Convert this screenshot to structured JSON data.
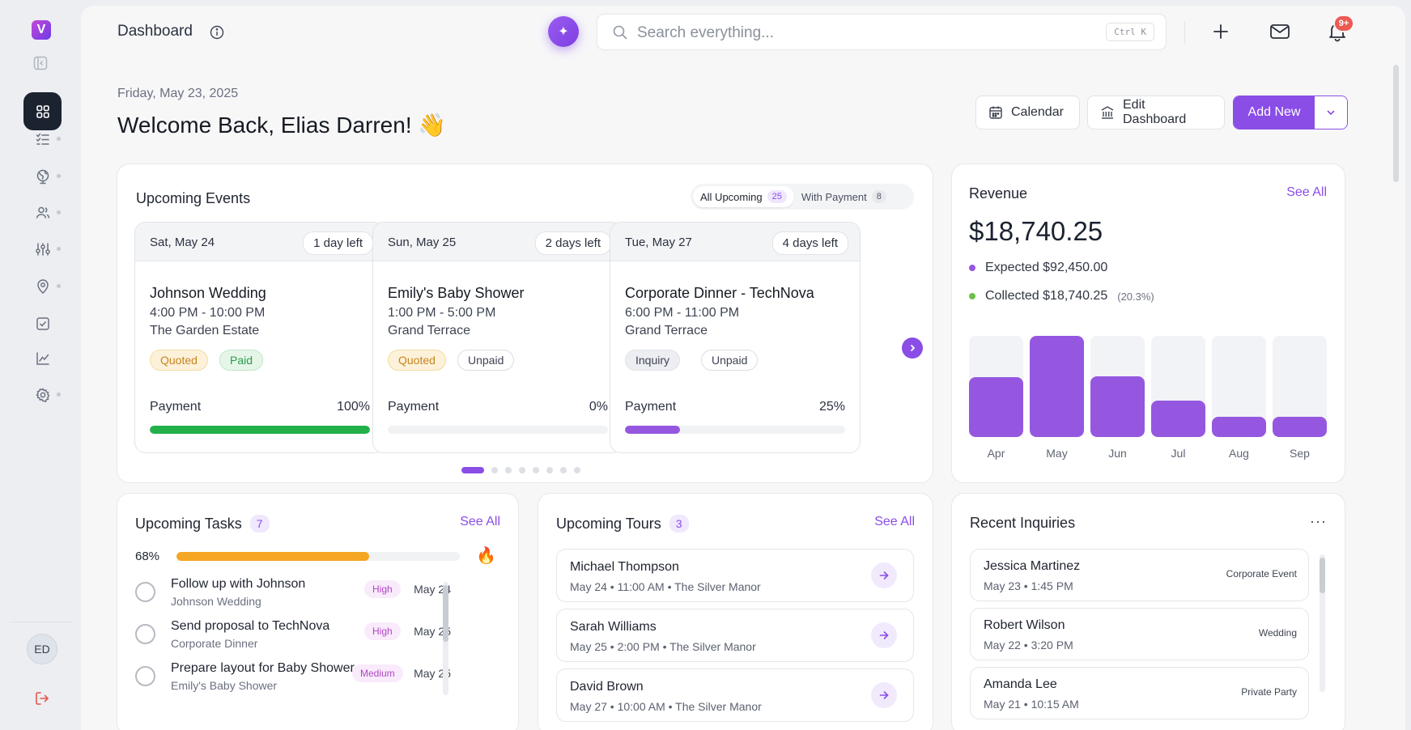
{
  "app": {
    "logo_letter": "V",
    "page_title": "Dashboard",
    "user_initials": "ED"
  },
  "search": {
    "placeholder": "Search everything...",
    "shortcut": "Ctrl K"
  },
  "notifications": {
    "badge": "9+"
  },
  "header": {
    "date": "Friday, May 23, 2025",
    "welcome": "Welcome Back, Elias Darren! 👋",
    "calendar_label": "Calendar",
    "edit_label": "Edit Dashboard",
    "add_label": "Add New"
  },
  "sidebar": {
    "items": [
      {
        "icon": "dashboard-grid-icon",
        "active": true,
        "dot": false
      },
      {
        "icon": "task-list-icon",
        "dot": true
      },
      {
        "icon": "globe-icon",
        "dot": true
      },
      {
        "icon": "users-icon",
        "dot": true
      },
      {
        "icon": "sliders-icon",
        "dot": true
      },
      {
        "icon": "location-pin-icon",
        "dot": true
      },
      {
        "icon": "checkbox-icon",
        "dot": false
      },
      {
        "icon": "analytics-chart-icon",
        "dot": false
      },
      {
        "icon": "settings-gear-icon",
        "dot": true
      }
    ]
  },
  "events": {
    "title": "Upcoming Events",
    "tabs": [
      {
        "label": "All Upcoming",
        "count": "25"
      },
      {
        "label": "With Payment",
        "count": "8"
      }
    ],
    "items": [
      {
        "date": "Sat, May 24",
        "left": "1 day left",
        "name": "Johnson Wedding",
        "time": "4:00 PM - 10:00 PM",
        "venue": "The Garden Estate",
        "tags": [
          "Quoted",
          "Paid"
        ],
        "payment_label": "Payment",
        "payment": "100%",
        "progress": 100,
        "color": "#22b04b"
      },
      {
        "date": "Sun, May 25",
        "left": "2 days left",
        "name": "Emily's Baby Shower",
        "time": "1:00 PM - 5:00 PM",
        "venue": "Grand Terrace",
        "tags": [
          "Quoted",
          "Unpaid"
        ],
        "payment_label": "Payment",
        "payment": "0%",
        "progress": 0,
        "color": "#9557e0"
      },
      {
        "date": "Tue, May 27",
        "left": "4 days left",
        "name": "Corporate Dinner - TechNova",
        "time": "6:00 PM - 11:00 PM",
        "venue": "Grand Terrace",
        "tags": [
          "Inquiry",
          "Unpaid"
        ],
        "payment_label": "Payment",
        "payment": "25%",
        "progress": 25,
        "color": "#9557e0"
      }
    ],
    "pages": 8,
    "active_page": 0
  },
  "revenue": {
    "title": "Revenue",
    "see_all": "See All",
    "amount": "$18,740.25",
    "expected": "Expected $92,450.00",
    "collected": "Collected $18,740.25",
    "collected_pct": "(20.3%)",
    "colors": {
      "expected": "#9557e0",
      "collected": "#6cc04a"
    }
  },
  "chart_data": {
    "type": "bar",
    "categories": [
      "Apr",
      "May",
      "Jun",
      "Jul",
      "Aug",
      "Sep"
    ],
    "values": [
      0.59,
      1.0,
      0.6,
      0.36,
      0.2,
      0.2
    ]
  },
  "tasks": {
    "title": "Upcoming Tasks",
    "count": "7",
    "see_all": "See All",
    "progress_label": "68%",
    "progress": 68,
    "items": [
      {
        "name": "Follow up with Johnson",
        "sub": "Johnson Wedding",
        "priority": "High",
        "date": "May 24"
      },
      {
        "name": "Send proposal to TechNova",
        "sub": "Corporate Dinner",
        "priority": "High",
        "date": "May 25"
      },
      {
        "name": "Prepare layout for Baby Shower",
        "sub": "Emily's Baby Shower",
        "priority": "Medium",
        "date": "May 25"
      }
    ]
  },
  "tours": {
    "title": "Upcoming Tours",
    "count": "3",
    "see_all": "See All",
    "items": [
      {
        "name": "Michael Thompson",
        "sub": "May 24 • 11:00 AM • The Silver Manor"
      },
      {
        "name": "Sarah Williams",
        "sub": "May 25 • 2:00 PM • The Silver Manor"
      },
      {
        "name": "David Brown",
        "sub": "May 27 • 10:00 AM • The Silver Manor"
      }
    ]
  },
  "inquiries": {
    "title": "Recent Inquiries",
    "more": "···",
    "items": [
      {
        "name": "Jessica Martinez",
        "sub": "May 23 • 1:45 PM",
        "type": "Corporate Event"
      },
      {
        "name": "Robert Wilson",
        "sub": "May 22 • 3:20 PM",
        "type": "Wedding"
      },
      {
        "name": "Amanda Lee",
        "sub": "May 21 • 10:15 AM",
        "type": "Private Party"
      }
    ]
  }
}
